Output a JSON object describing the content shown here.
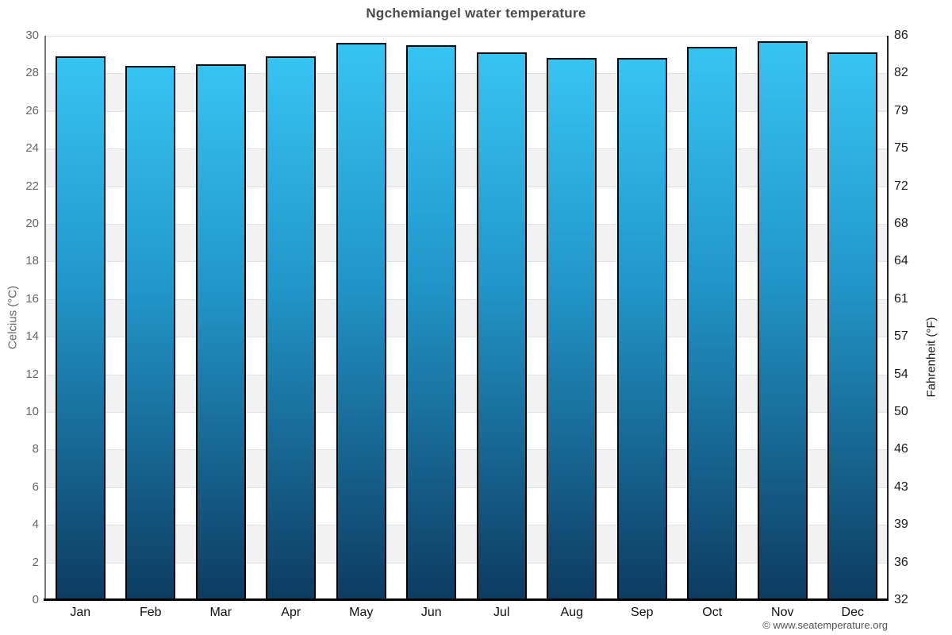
{
  "page": {
    "title": "Ngchemiangel water temperature",
    "footer": "© www.seatemperature.org"
  },
  "chart_data": {
    "type": "bar",
    "title": "Ngchemiangel water temperature",
    "categories": [
      "Jan",
      "Feb",
      "Mar",
      "Apr",
      "May",
      "Jun",
      "Jul",
      "Aug",
      "Sep",
      "Oct",
      "Nov",
      "Dec"
    ],
    "series": [
      {
        "name": "Water temperature (°C)",
        "values": [
          28.9,
          28.4,
          28.5,
          28.9,
          29.6,
          29.5,
          29.1,
          28.8,
          28.8,
          29.4,
          29.7,
          29.1
        ]
      },
      {
        "name": "Water temperature (°F)",
        "values": [
          84.0,
          83.1,
          83.3,
          84.0,
          85.3,
          85.1,
          84.4,
          83.8,
          83.8,
          84.9,
          85.5,
          84.4
        ]
      }
    ],
    "xlabel": "",
    "ylabel_left": "Celcius (°C)",
    "ylabel_right": "Fahrenheit (°F)",
    "ylim_celsius": [
      0,
      30
    ],
    "yticks_left_celsius": [
      30,
      28,
      26,
      24,
      22,
      20,
      18,
      16,
      14,
      12,
      10,
      8,
      6,
      4,
      2,
      0
    ],
    "yticks_right_fahrenheit": [
      86,
      82,
      79,
      75,
      72,
      68,
      64,
      61,
      57,
      54,
      50,
      46,
      43,
      39,
      36,
      32
    ],
    "grid": "alternating horizontal bands every 2°C, light gray / white, thin gridlines at 2°C steps",
    "legend": "none",
    "colors": {
      "bar_gradient_top": "#37c4f2",
      "bar_gradient_mid": "#2196c9",
      "bar_gradient_bottom": "#0d3b60",
      "bar_border": "#000000",
      "band_gray": "#f2f2f2",
      "gridline": "#e2e2e2",
      "axis_line_left": "#777777",
      "axis_line_right": "#222222",
      "baseline": "#000000",
      "title_color": "#4a4a4a",
      "left_tick_color": "#666666",
      "right_tick_color": "#1a1a1a",
      "month_label_color": "#111111",
      "footer_color": "#555555",
      "background": "#ffffff"
    }
  }
}
